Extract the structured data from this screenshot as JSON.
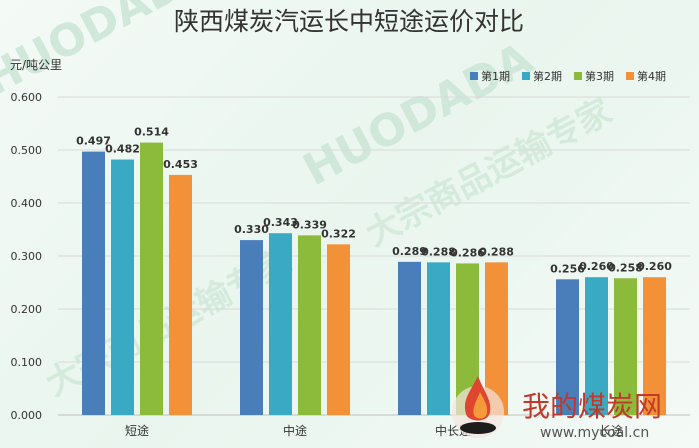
{
  "chart_data": {
    "type": "bar",
    "title": "陕西煤炭汽运长中短途运价对比",
    "ylabel": "元/吨公里",
    "ylim": [
      0,
      0.6
    ],
    "yticks": [
      "0.000",
      "0.100",
      "0.200",
      "0.300",
      "0.400",
      "0.500",
      "0.600"
    ],
    "grid": true,
    "legend_position": "top-right",
    "categories": [
      "短途",
      "中途",
      "中长途",
      "长途"
    ],
    "series": [
      {
        "name": "第1期",
        "color": "#4a7ebb",
        "values": [
          0.497,
          0.33,
          0.289,
          0.256
        ],
        "labels": [
          "0.497",
          "0.330",
          "0.289",
          "0.256"
        ]
      },
      {
        "name": "第2期",
        "color": "#3aaac4",
        "values": [
          0.482,
          0.343,
          0.288,
          0.26
        ],
        "labels": [
          "0.482",
          "0.343",
          "0.288",
          "0.260"
        ]
      },
      {
        "name": "第3期",
        "color": "#8cbb3c",
        "values": [
          0.514,
          0.339,
          0.286,
          0.258
        ],
        "labels": [
          "0.514",
          "0.339",
          "0.286",
          "0.258"
        ]
      },
      {
        "name": "第4期",
        "color": "#f39139",
        "values": [
          0.453,
          0.322,
          0.288,
          0.26
        ],
        "labels": [
          "0.453",
          "0.322",
          "0.288",
          "0.260"
        ]
      }
    ]
  },
  "watermark": {
    "brand_en": "HUODADA",
    "brand_cn": "大宗商品运输专家",
    "site_name": "我的煤炭网",
    "site_url": "www.mycoal.cn"
  }
}
